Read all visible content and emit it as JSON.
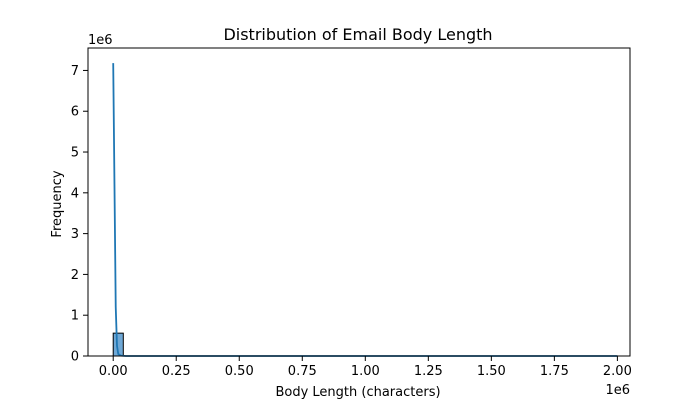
{
  "chart_data": {
    "type": "histogram",
    "title": "Distribution of Email Body Length",
    "xlabel": "Body Length (characters)",
    "ylabel": "Frequency",
    "x_offset_label": "1e6",
    "y_offset_label": "1e6",
    "xlim": [
      -0.1,
      2.05
    ],
    "ylim": [
      0,
      7.55
    ],
    "x_scale": 1000000,
    "y_scale": 1000000,
    "x_ticks": [
      0,
      0.25,
      0.5,
      0.75,
      1.0,
      1.25,
      1.5,
      1.75,
      2.0
    ],
    "x_tick_labels": [
      "0.00",
      "0.25",
      "0.50",
      "0.75",
      "1.00",
      "1.25",
      "1.50",
      "1.75",
      "2.00"
    ],
    "y_ticks": [
      0,
      1,
      2,
      3,
      4,
      5,
      6,
      7
    ],
    "y_tick_labels": [
      "0",
      "1",
      "2",
      "3",
      "4",
      "5",
      "6",
      "7"
    ],
    "grid": false,
    "bins": [
      {
        "x0": 0.0,
        "x1": 0.04,
        "count": 0.56
      }
    ],
    "kde": {
      "x": [
        0.0,
        0.005,
        0.01,
        0.015,
        0.02,
        0.03,
        0.05,
        0.1,
        0.5,
        1.0,
        1.5,
        2.0
      ],
      "y": [
        7.18,
        4.2,
        1.2,
        0.25,
        0.05,
        0.01,
        0.0,
        0.0,
        0.0,
        0.0,
        0.0,
        0.0
      ]
    },
    "colors": {
      "bar_fill": "#6fa8d6",
      "bar_edge": "#000000",
      "kde_line": "#1f77b4"
    }
  }
}
